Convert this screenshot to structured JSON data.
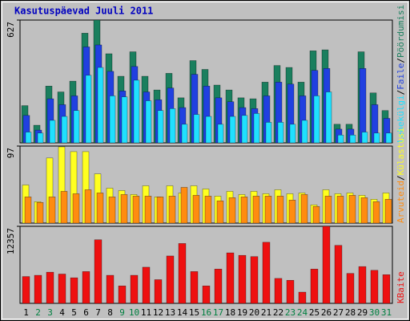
{
  "chart_data": [
    {
      "type": "bar",
      "title": "Kasutuspäevad Juuli 2011",
      "legend_separator": "/",
      "ylim": [
        0,
        627
      ],
      "yticks": [
        627
      ],
      "series": [
        {
          "name": "Pöördumisi",
          "color": "#1a7f5e",
          "values": [
            190,
            90,
            290,
            260,
            315,
            560,
            627,
            455,
            340,
            465,
            340,
            270,
            355,
            230,
            420,
            375,
            295,
            270,
            230,
            225,
            310,
            395,
            385,
            310,
            470,
            475,
            95,
            95,
            465,
            255,
            165
          ]
        },
        {
          "name": "Faile",
          "color": "#2040e0",
          "values": [
            140,
            65,
            225,
            195,
            240,
            490,
            500,
            365,
            265,
            390,
            260,
            220,
            280,
            180,
            350,
            290,
            230,
            210,
            180,
            175,
            240,
            310,
            300,
            240,
            370,
            380,
            70,
            70,
            380,
            195,
            125
          ]
        },
        {
          "name": "Lehekülgi",
          "color": "#20e0ff",
          "values": [
            55,
            50,
            115,
            135,
            165,
            345,
            385,
            240,
            235,
            320,
            215,
            165,
            175,
            95,
            145,
            135,
            95,
            135,
            140,
            150,
            105,
            105,
            95,
            115,
            240,
            260,
            40,
            40,
            55,
            50,
            50
          ]
        }
      ]
    },
    {
      "type": "bar",
      "ylim": [
        0,
        97
      ],
      "yticks": [
        97
      ],
      "series": [
        {
          "name": "Külastusi",
          "color": "#ffff20",
          "values": [
            48,
            27,
            82,
            96,
            90,
            90,
            62,
            44,
            41,
            36,
            47,
            33,
            47,
            38,
            47,
            43,
            34,
            40,
            36,
            40,
            37,
            42,
            37,
            38,
            23,
            42,
            37,
            38,
            35,
            30,
            38
          ]
        },
        {
          "name": "Arvuteid",
          "color": "#ff8c10",
          "values": [
            33,
            26,
            33,
            40,
            37,
            42,
            38,
            33,
            36,
            34,
            34,
            33,
            34,
            45,
            35,
            34,
            28,
            32,
            33,
            34,
            34,
            34,
            29,
            36,
            21,
            34,
            34,
            35,
            32,
            27,
            30
          ]
        }
      ]
    },
    {
      "type": "bar",
      "ylim": [
        0,
        12357
      ],
      "yticks": [
        12357
      ],
      "categories": [
        "1",
        "2",
        "3",
        "4",
        "5",
        "6",
        "7",
        "8",
        "9",
        "10",
        "11",
        "12",
        "13",
        "14",
        "15",
        "16",
        "17",
        "18",
        "19",
        "20",
        "21",
        "22",
        "23",
        "24",
        "25",
        "26",
        "27",
        "28",
        "29",
        "30",
        "31"
      ],
      "category_colors": [
        "#000000",
        "#008040",
        "#008040",
        "#000000",
        "#000000",
        "#000000",
        "#000000",
        "#000000",
        "#008040",
        "#008040",
        "#000000",
        "#000000",
        "#000000",
        "#000000",
        "#000000",
        "#008040",
        "#008040",
        "#000000",
        "#000000",
        "#000000",
        "#000000",
        "#000000",
        "#008040",
        "#008040",
        "#000000",
        "#000000",
        "#000000",
        "#000000",
        "#000000",
        "#008040",
        "#008040"
      ],
      "series": [
        {
          "name": "KBaite",
          "color": "#ee1010",
          "values": [
            4300,
            4500,
            5000,
            4700,
            4100,
            5100,
            10200,
            4500,
            2800,
            4500,
            5800,
            3800,
            7600,
            9600,
            5100,
            2800,
            5500,
            8100,
            7700,
            7500,
            9800,
            4000,
            3700,
            1800,
            5500,
            12357,
            9300,
            4800,
            5900,
            5300,
            4600
          ]
        }
      ]
    }
  ]
}
